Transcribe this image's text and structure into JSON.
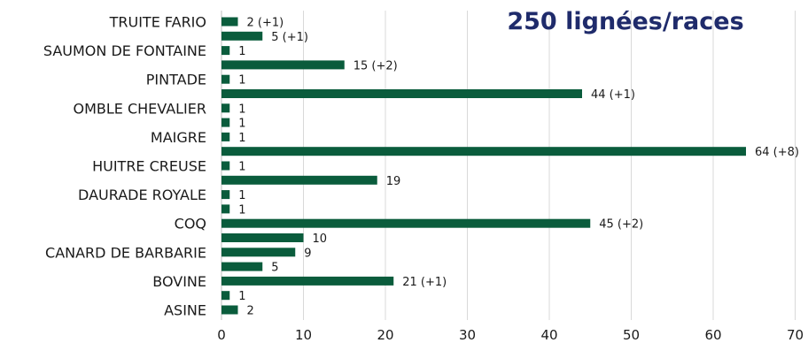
{
  "chart_data": {
    "type": "bar",
    "orientation": "horizontal",
    "title": "250 lignées/races",
    "bar_color": "#0a5c3c",
    "grid": true,
    "xlim": [
      0,
      70
    ],
    "xticks": [
      0,
      10,
      20,
      30,
      40,
      50,
      60,
      70
    ],
    "categories": [
      {
        "label": "TRUITE FARIO",
        "value": 2,
        "data_label": "2 (+1)"
      },
      {
        "label": "",
        "value": 5,
        "data_label": "5 (+1)"
      },
      {
        "label": "SAUMON DE FONTAINE",
        "value": 1,
        "data_label": "1"
      },
      {
        "label": "",
        "value": 15,
        "data_label": "15 (+2)"
      },
      {
        "label": "PINTADE",
        "value": 1,
        "data_label": "1"
      },
      {
        "label": "",
        "value": 44,
        "data_label": "44 (+1)"
      },
      {
        "label": "OMBLE CHEVALIER",
        "value": 1,
        "data_label": "1"
      },
      {
        "label": "",
        "value": 1,
        "data_label": "1"
      },
      {
        "label": "MAIGRE",
        "value": 1,
        "data_label": "1"
      },
      {
        "label": "",
        "value": 64,
        "data_label": "64 (+8)"
      },
      {
        "label": "HUITRE CREUSE",
        "value": 1,
        "data_label": "1"
      },
      {
        "label": "",
        "value": 19,
        "data_label": "19"
      },
      {
        "label": "DAURADE ROYALE",
        "value": 1,
        "data_label": "1"
      },
      {
        "label": "",
        "value": 1,
        "data_label": "1"
      },
      {
        "label": "COQ",
        "value": 45,
        "data_label": "45 (+2)"
      },
      {
        "label": "",
        "value": 10,
        "data_label": "10"
      },
      {
        "label": "CANARD DE BARBARIE",
        "value": 9,
        "data_label": "9"
      },
      {
        "label": "",
        "value": 5,
        "data_label": "5"
      },
      {
        "label": "BOVINE",
        "value": 21,
        "data_label": "21 (+1)"
      },
      {
        "label": "",
        "value": 1,
        "data_label": "1"
      },
      {
        "label": "ASINE",
        "value": 2,
        "data_label": "2"
      }
    ]
  }
}
